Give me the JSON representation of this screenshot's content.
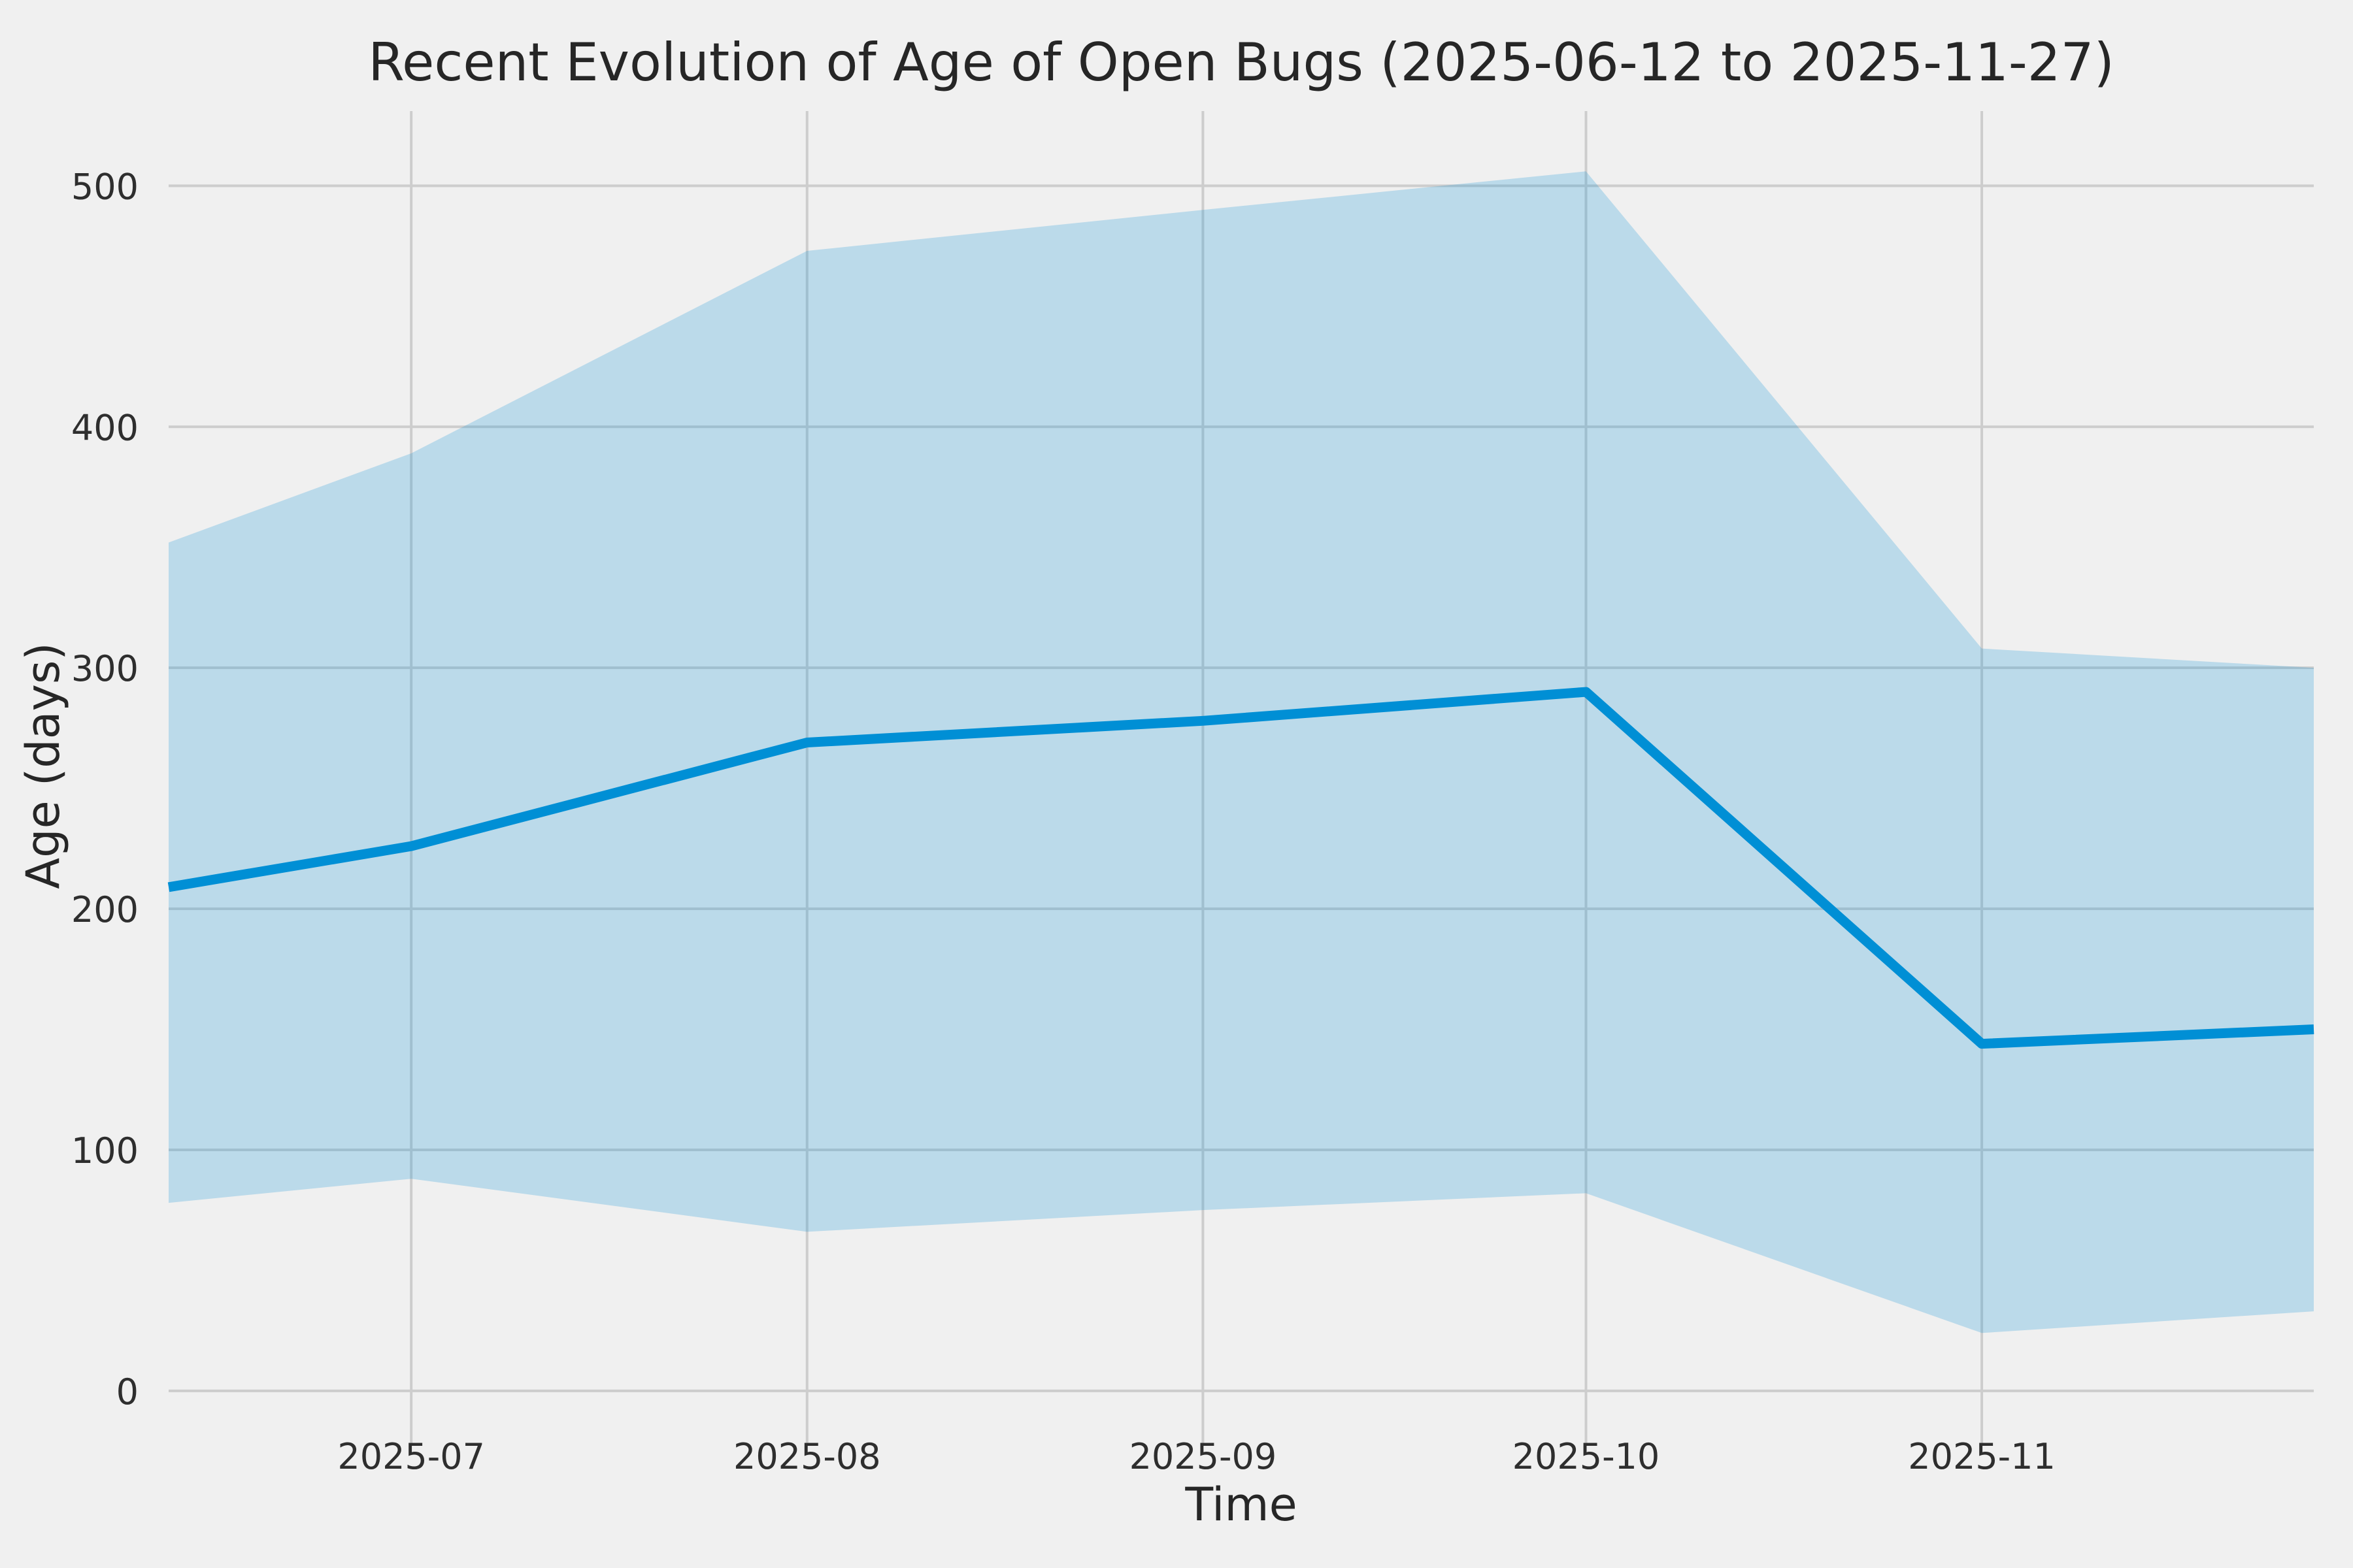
{
  "figure": {
    "background_color": "#F0F0F0"
  },
  "chart_data": {
    "type": "line",
    "title": "Recent Evolution of Age of Open Bugs (2025-06-12 to 2025-11-27)",
    "xlabel": "Time",
    "ylabel": "Age (days)",
    "x_range": [
      "2025-06-12",
      "2025-11-27"
    ],
    "x": [
      "2025-06-12",
      "2025-07-01",
      "2025-08-01",
      "2025-09-01",
      "2025-10-01",
      "2025-11-01",
      "2025-11-27"
    ],
    "series": [
      {
        "name": "median",
        "kind": "line",
        "values": [
          209,
          226,
          269,
          278,
          290,
          144,
          150
        ]
      },
      {
        "name": "lower",
        "kind": "band-lower-edge",
        "values": [
          78,
          88,
          66,
          75,
          82,
          24,
          33
        ]
      },
      {
        "name": "upper",
        "kind": "band-upper-edge",
        "values": [
          352,
          389,
          473,
          490,
          506,
          308,
          300
        ]
      }
    ],
    "x_ticks": [
      {
        "label": "2025-07",
        "date": "2025-07-01"
      },
      {
        "label": "2025-08",
        "date": "2025-08-01"
      },
      {
        "label": "2025-09",
        "date": "2025-09-01"
      },
      {
        "label": "2025-10",
        "date": "2025-10-01"
      },
      {
        "label": "2025-11",
        "date": "2025-11-01"
      }
    ],
    "y_ticks": [
      0,
      100,
      200,
      300,
      400,
      500
    ],
    "ylim": [
      -22,
      531
    ],
    "grid": true,
    "legend": false,
    "colors": {
      "line": "#008FD5",
      "band": "#008FD5",
      "band_opacity": 0.22,
      "grid": "#CDCDCD",
      "text": "#2E2E2E",
      "background": "#F0F0F0"
    },
    "line_width": 15
  }
}
